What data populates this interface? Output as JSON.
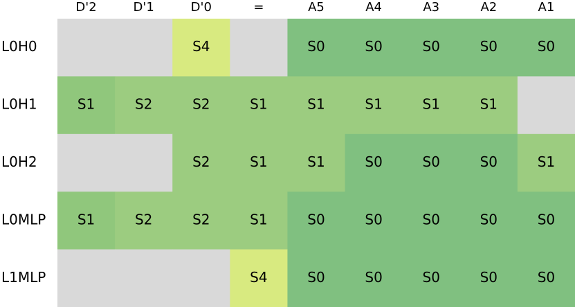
{
  "columns": [
    "D'2",
    "D'1",
    "D'0",
    "=",
    "A5",
    "A4",
    "A3",
    "A2",
    "A1"
  ],
  "rows": [
    "L0H0",
    "L0H1",
    "L0H2",
    "L0MLP",
    "L1MLP"
  ],
  "empty_color": "#d9d9d9",
  "cells": [
    [
      null,
      null,
      {
        "label": "S4",
        "color": "#d8ea80"
      },
      null,
      {
        "label": "S0",
        "color": "#80c080"
      },
      {
        "label": "S0",
        "color": "#80c080"
      },
      {
        "label": "S0",
        "color": "#80c080"
      },
      {
        "label": "S0",
        "color": "#80c080"
      },
      {
        "label": "S0",
        "color": "#80c080"
      }
    ],
    [
      {
        "label": "S1",
        "color": "#90c77c"
      },
      {
        "label": "S2",
        "color": "#9ccc80"
      },
      {
        "label": "S2",
        "color": "#9ccc80"
      },
      {
        "label": "S1",
        "color": "#9ccc80"
      },
      {
        "label": "S1",
        "color": "#9ccc80"
      },
      {
        "label": "S1",
        "color": "#9ccc80"
      },
      {
        "label": "S1",
        "color": "#9ccc80"
      },
      {
        "label": "S1",
        "color": "#9ccc80"
      },
      null
    ],
    [
      null,
      null,
      {
        "label": "S2",
        "color": "#9ccc80"
      },
      {
        "label": "S1",
        "color": "#9ccc80"
      },
      {
        "label": "S1",
        "color": "#9ccc80"
      },
      {
        "label": "S0",
        "color": "#80c080"
      },
      {
        "label": "S0",
        "color": "#80c080"
      },
      {
        "label": "S0",
        "color": "#80c080"
      },
      {
        "label": "S1",
        "color": "#9ccc80"
      }
    ],
    [
      {
        "label": "S1",
        "color": "#90c77c"
      },
      {
        "label": "S2",
        "color": "#9ccc80"
      },
      {
        "label": "S2",
        "color": "#9ccc80"
      },
      {
        "label": "S1",
        "color": "#9ccc80"
      },
      {
        "label": "S0",
        "color": "#80c080"
      },
      {
        "label": "S0",
        "color": "#80c080"
      },
      {
        "label": "S0",
        "color": "#80c080"
      },
      {
        "label": "S0",
        "color": "#80c080"
      },
      {
        "label": "S0",
        "color": "#80c080"
      }
    ],
    [
      null,
      null,
      null,
      {
        "label": "S4",
        "color": "#d8ea80"
      },
      {
        "label": "S0",
        "color": "#80c080"
      },
      {
        "label": "S0",
        "color": "#80c080"
      },
      {
        "label": "S0",
        "color": "#80c080"
      },
      {
        "label": "S0",
        "color": "#80c080"
      },
      {
        "label": "S0",
        "color": "#80c080"
      }
    ]
  ]
}
